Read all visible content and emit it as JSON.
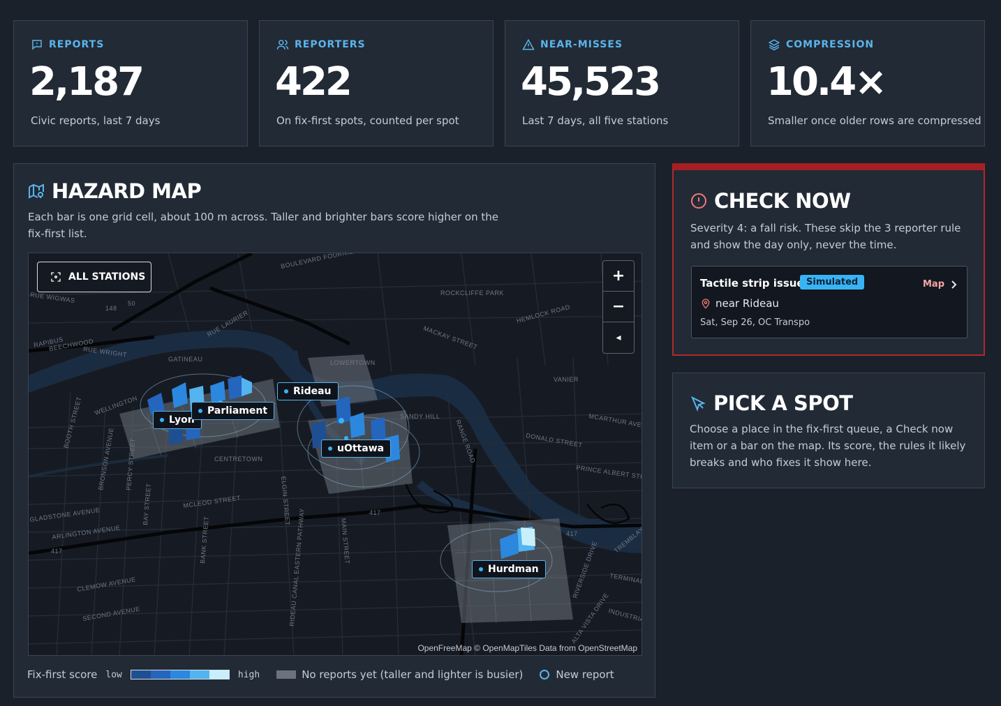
{
  "stats": [
    {
      "label": "REPORTS",
      "value": "2,187",
      "sub": "Civic reports, last 7 days",
      "icon": "report-icon"
    },
    {
      "label": "REPORTERS",
      "value": "422",
      "sub": "On fix-first spots, counted per spot",
      "icon": "users-icon"
    },
    {
      "label": "NEAR-MISSES",
      "value": "45,523",
      "sub": "Last 7 days, all five stations",
      "icon": "warning-icon"
    },
    {
      "label": "COMPRESSION",
      "value": "10.4×",
      "sub": "Smaller once older rows are compressed",
      "icon": "layers-icon"
    }
  ],
  "hazard_map": {
    "title": "HAZARD MAP",
    "desc": "Each bar is one grid cell, about 100 m across. Taller and brighter bars score higher on the fix-first list.",
    "all_stations_label": "ALL STATIONS",
    "zoom_in": "+",
    "zoom_out": "−",
    "compass": "◂",
    "stations": [
      "Lyon",
      "Parliament",
      "Rideau",
      "uOttawa",
      "Hurdman"
    ],
    "attribution": "OpenFreeMap © OpenMapTiles Data from OpenStreetMap",
    "place_labels": [
      "BOULEVARD FOURNIER",
      "ROCKCLIFFE PARK",
      "RUE WIGWAS",
      "RUE LAURIER",
      "BEECHWOOD",
      "MACKAY STREET",
      "HEMLOCK ROAD",
      "RAPIBUS",
      "RUE WRIGHT",
      "GATINEAU",
      "LOWERTOWN",
      "VANIER",
      "WELLINGTON",
      "SANDY HILL",
      "MCARTHUR AVENUE",
      "BOOTH STREET",
      "DONALD STREET",
      "BRONSON AVENUE",
      "PERCY STREET",
      "CENTRETOWN",
      "ELGIN STREET",
      "RANGE ROAD",
      "PRINCE ALBERT STREET",
      "BAY STREET",
      "MCLEOD STREET",
      "GLADSTONE AVENUE",
      "ARLINGTON AVENUE",
      "BANK STREET",
      "MAIN STREET",
      "CLEMOW AVENUE",
      "SECOND AVENUE",
      "RIDEAU CANAL EASTERN PATHWAY",
      "RIVERSIDE DRIVE",
      "TERMINAL",
      "TREMBLAY",
      "INDUSTRIAL",
      "ALTA VISTA DRIVE"
    ],
    "road_numbers": [
      "148",
      "50",
      "417",
      "417",
      "417"
    ]
  },
  "legend": {
    "score_label": "Fix-first score",
    "low": "low",
    "high": "high",
    "gradient": [
      "#1f4f93",
      "#2465bd",
      "#2b88de",
      "#53b4f0",
      "#c8f0fc"
    ],
    "no_reports_label": "No reports yet (taller and lighter is busier)",
    "no_reports_color": "#6d737c",
    "new_report_label": "New report"
  },
  "check_now": {
    "title": "CHECK NOW",
    "desc": "Severity 4: a fall risk. These skip the 3 reporter rule and show the day only, never the time.",
    "item": {
      "title": "Tactile strip issue",
      "badge": "Simulated",
      "map_link": "Map",
      "location": "near Rideau",
      "date": "Sat, Sep 26, OC Transpo"
    }
  },
  "pick_spot": {
    "title": "PICK A SPOT",
    "desc": "Choose a place in the fix-first queue, a Check now item or a bar on the map. Its score, the rules it likely breaks and who fixes it show here."
  }
}
